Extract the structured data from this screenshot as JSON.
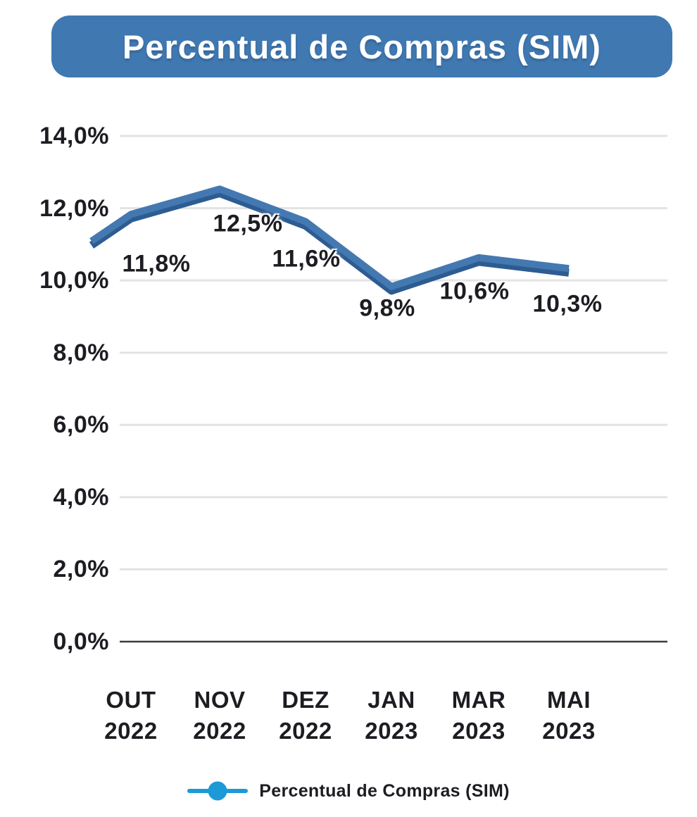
{
  "title": "Percentual de Compras (SIM)",
  "legend": {
    "label": "Percentual de Compras (SIM)",
    "marker_color": "#1b9ad6"
  },
  "colors": {
    "banner_blue": "#4079b2",
    "line_blue": "#4478b1",
    "line_shadow_blue": "#2d5c92",
    "gridline_gray": "#e3e3e3",
    "axis_dark": "#3b3b3b",
    "text_dark": "#1c1c22",
    "title_white": "#ffffff"
  },
  "chart_data": {
    "type": "line",
    "title": "Percentual de Compras (SIM)",
    "categories": [
      "OUT 2022",
      "NOV 2022",
      "DEZ 2022",
      "JAN 2023",
      "MAR 2023",
      "MAI 2023"
    ],
    "values": [
      11.8,
      12.5,
      11.6,
      9.8,
      10.6,
      10.3
    ],
    "point_labels": [
      "11,8%",
      "12,5%",
      "11,6%",
      "9,8%",
      "10,6%",
      "10,3%"
    ],
    "y_ticks": [
      "14,0%",
      "12,0%",
      "10,0%",
      "8,0%",
      "6,0%",
      "4,0%",
      "2,0%",
      "0,0%"
    ],
    "ylim": [
      0,
      14
    ],
    "y_tick_step": 2,
    "grid": true,
    "legend_position": "bottom",
    "series_name": "Percentual de Compras (SIM)"
  }
}
